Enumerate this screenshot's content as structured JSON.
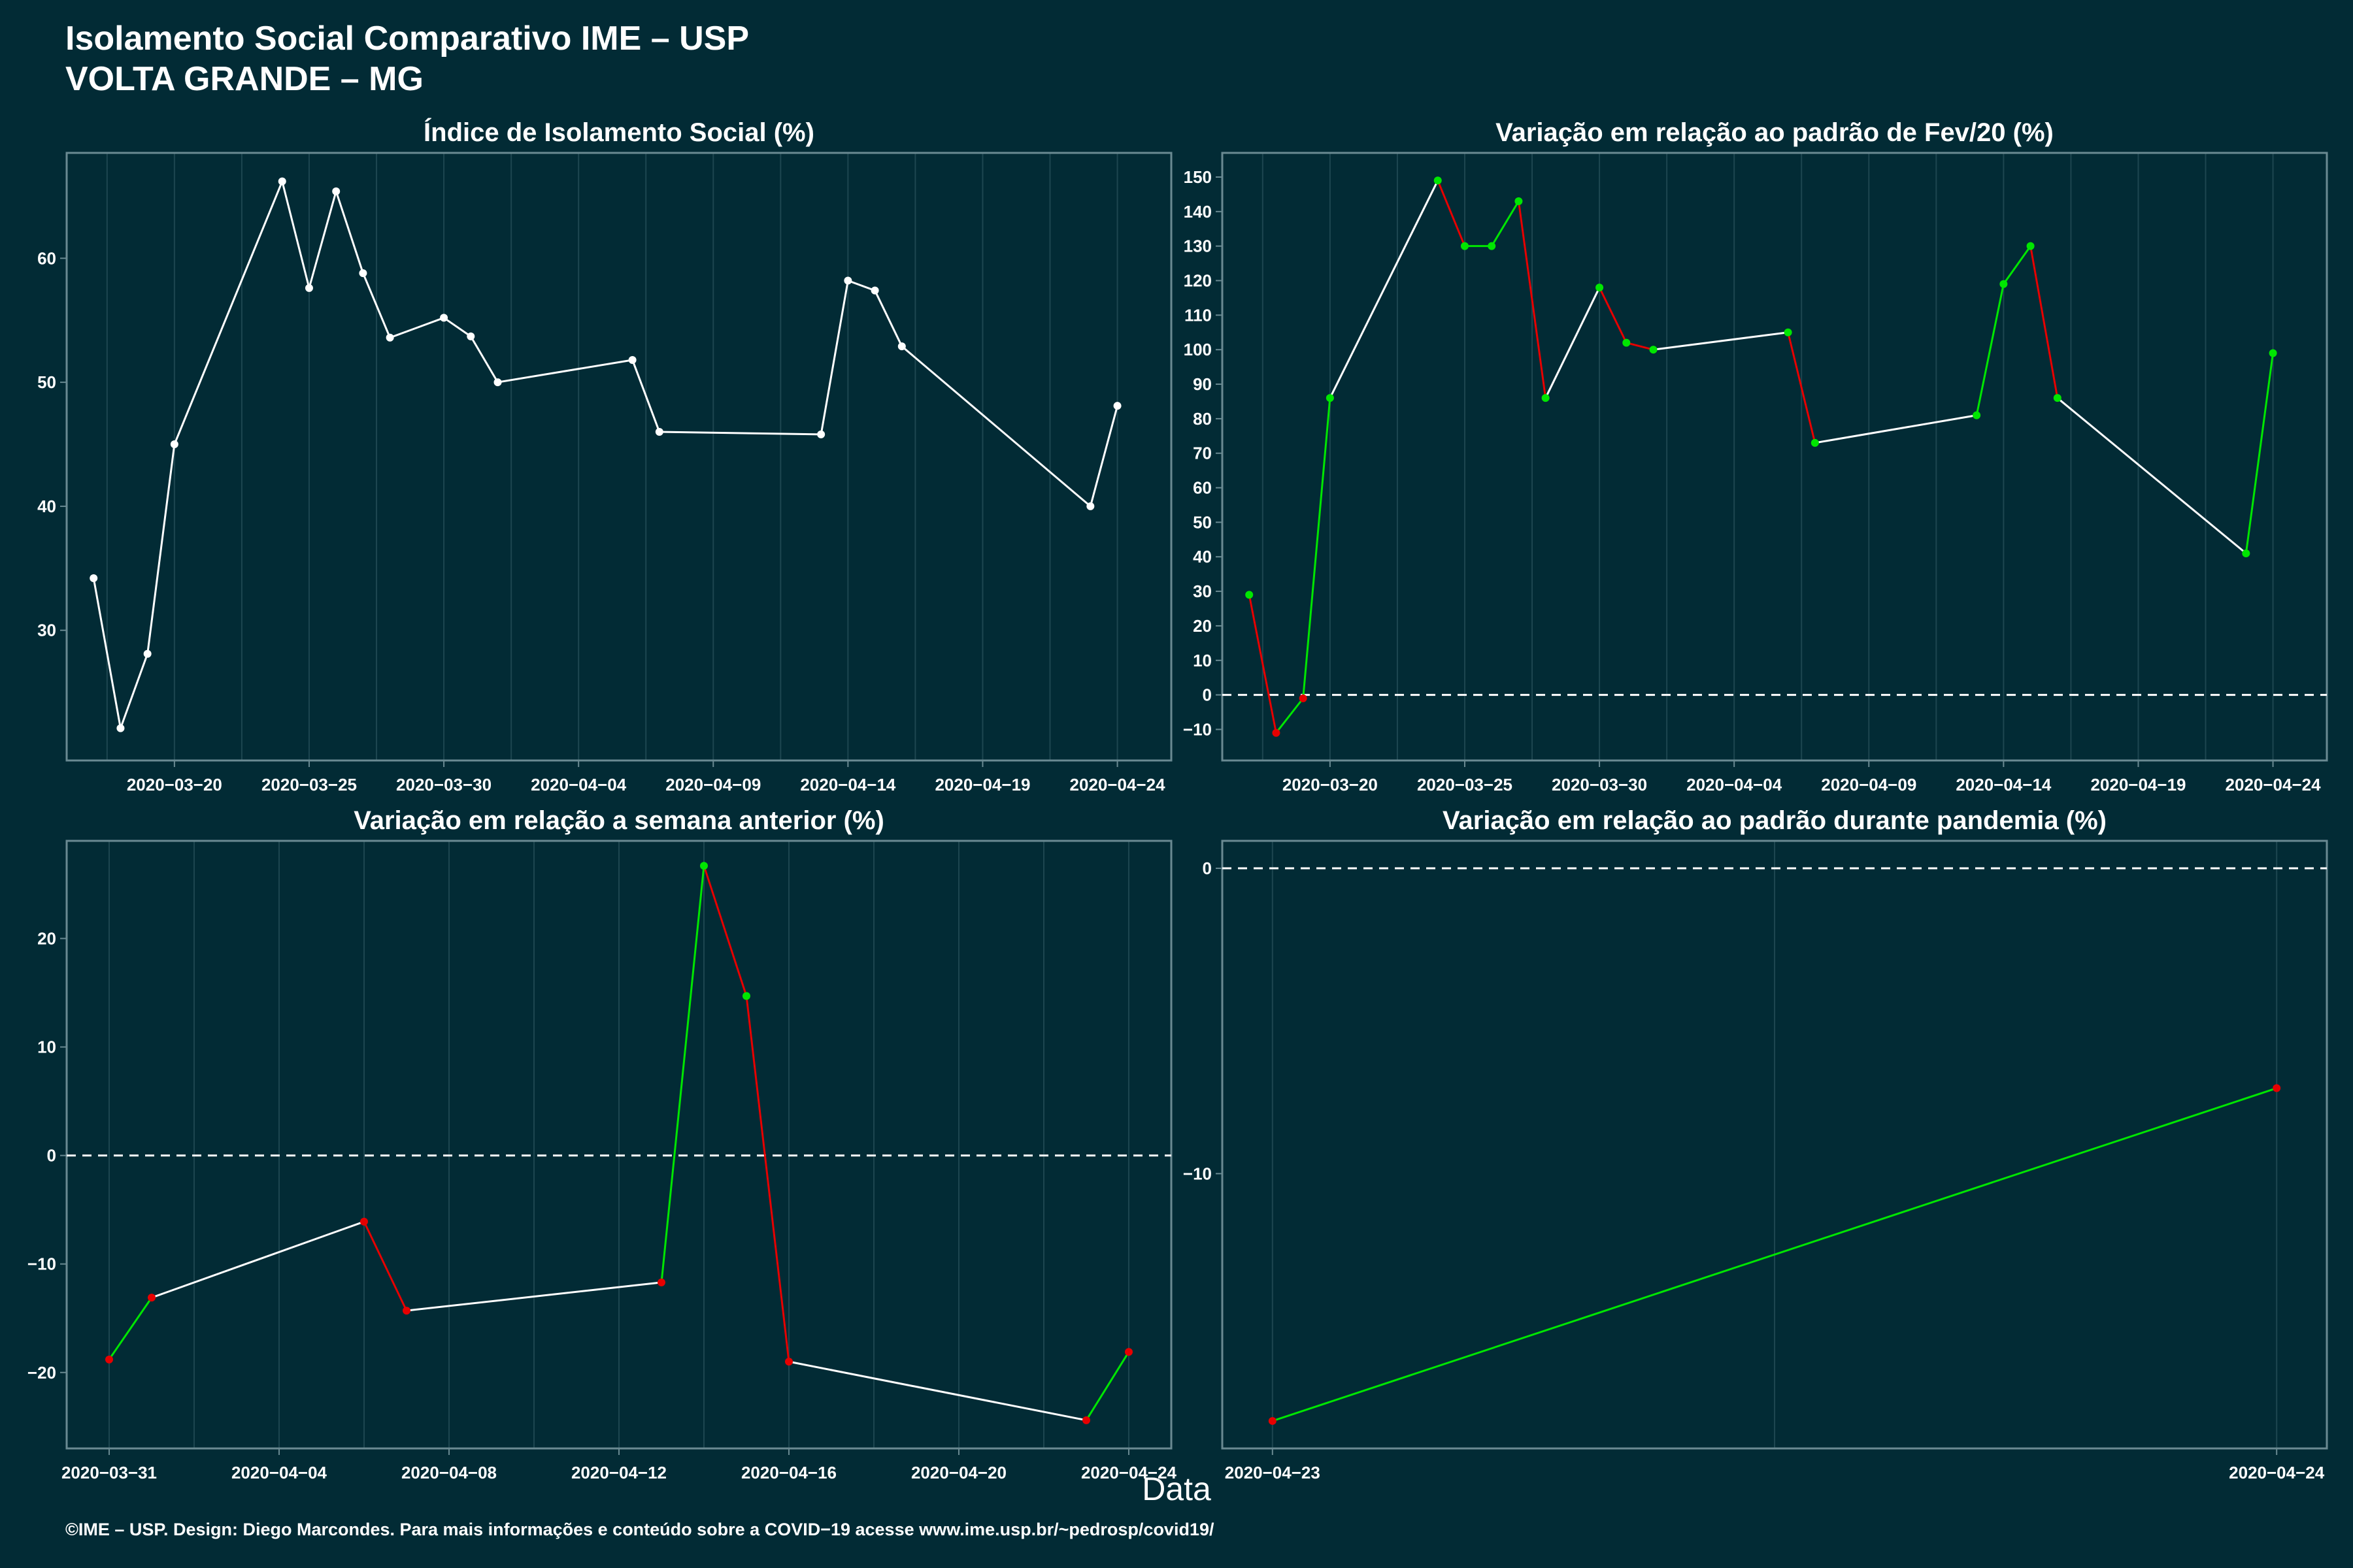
{
  "header": {
    "title_line1": "Isolamento Social Comparativo IME – USP",
    "title_line2": "VOLTA GRANDE – MG"
  },
  "xaxis_title": "Data",
  "footer": "©IME – USP. Design: Diego Marcondes. Para mais informações e conteúdo sobre a COVID−19 acesse www.ime.usp.br/~pedrosp/covid19/",
  "colors": {
    "background": "#022b35",
    "panel_border": "#6a8a92",
    "grid": "#1d4650",
    "line_neutral": "#ffffff",
    "increase": "#00e600",
    "decrease": "#e60000"
  },
  "chart_data": [
    {
      "type": "line",
      "title": "Índice de Isolamento Social (%)",
      "x_type": "date",
      "xlim": [
        "2020-03-16",
        "2020-04-26"
      ],
      "ylim": [
        19.5,
        68.5
      ],
      "x_ticks": [
        "2020-03-20",
        "2020-03-25",
        "2020-03-30",
        "2020-04-04",
        "2020-04-09",
        "2020-04-14",
        "2020-04-19",
        "2020-04-24"
      ],
      "y_ticks": [
        30,
        40,
        50,
        60
      ],
      "reference_zero": false,
      "color_by_sign": false,
      "points": [
        [
          "2020-03-17",
          34.2
        ],
        [
          "2020-03-18",
          22.1
        ],
        [
          "2020-03-19",
          28.1
        ],
        [
          "2020-03-20",
          45.0
        ],
        [
          "2020-03-24",
          66.2
        ],
        [
          "2020-03-25",
          57.6
        ],
        [
          "2020-03-26",
          65.4
        ],
        [
          "2020-03-27",
          58.8
        ],
        [
          "2020-03-28",
          53.6
        ],
        [
          "2020-03-30",
          55.2
        ],
        [
          "2020-03-31",
          53.7
        ],
        [
          "2020-04-01",
          50.0
        ],
        [
          "2020-04-06",
          51.8
        ],
        [
          "2020-04-07",
          46.0
        ],
        [
          "2020-04-13",
          45.8
        ],
        [
          "2020-04-14",
          58.2
        ],
        [
          "2020-04-15",
          57.4
        ],
        [
          "2020-04-16",
          52.9
        ],
        [
          "2020-04-23",
          40.0
        ],
        [
          "2020-04-24",
          48.1
        ]
      ]
    },
    {
      "type": "line",
      "title": "Variação em relação ao padrão de Fev/20 (%)",
      "x_type": "date",
      "xlim": [
        "2020-03-16",
        "2020-04-26"
      ],
      "ylim": [
        -19,
        157
      ],
      "x_ticks": [
        "2020-03-20",
        "2020-03-25",
        "2020-03-30",
        "2020-04-04",
        "2020-04-09",
        "2020-04-14",
        "2020-04-19",
        "2020-04-24"
      ],
      "y_ticks": [
        -10,
        0,
        10,
        20,
        30,
        40,
        50,
        60,
        70,
        80,
        90,
        100,
        110,
        120,
        130,
        140,
        150
      ],
      "reference_zero": true,
      "color_by_sign": true,
      "points": [
        [
          "2020-03-17",
          29
        ],
        [
          "2020-03-18",
          -11
        ],
        [
          "2020-03-19",
          -1
        ],
        [
          "2020-03-20",
          86
        ],
        [
          "2020-03-24",
          149
        ],
        [
          "2020-03-25",
          130
        ],
        [
          "2020-03-26",
          130
        ],
        [
          "2020-03-27",
          143
        ],
        [
          "2020-03-28",
          86
        ],
        [
          "2020-03-30",
          118
        ],
        [
          "2020-03-31",
          102
        ],
        [
          "2020-04-01",
          100
        ],
        [
          "2020-04-06",
          105
        ],
        [
          "2020-04-07",
          73
        ],
        [
          "2020-04-13",
          81
        ],
        [
          "2020-04-14",
          119
        ],
        [
          "2020-04-15",
          130
        ],
        [
          "2020-04-16",
          86
        ],
        [
          "2020-04-23",
          41
        ],
        [
          "2020-04-24",
          99
        ]
      ]
    },
    {
      "type": "line",
      "title": "Variação em relação a semana anterior (%)",
      "x_type": "date",
      "xlim": [
        "2020-03-30",
        "2020-04-25"
      ],
      "ylim": [
        -27,
        29
      ],
      "x_ticks": [
        "2020-03-31",
        "2020-04-04",
        "2020-04-08",
        "2020-04-12",
        "2020-04-16",
        "2020-04-20",
        "2020-04-24"
      ],
      "y_ticks": [
        -20,
        -10,
        0,
        10,
        20
      ],
      "reference_zero": true,
      "color_by_sign": true,
      "points": [
        [
          "2020-03-31",
          -18.8
        ],
        [
          "2020-04-01",
          -13.1
        ],
        [
          "2020-04-06",
          -6.1
        ],
        [
          "2020-04-07",
          -14.3
        ],
        [
          "2020-04-13",
          -11.7
        ],
        [
          "2020-04-14",
          26.7
        ],
        [
          "2020-04-15",
          14.7
        ],
        [
          "2020-04-16",
          -19.0
        ],
        [
          "2020-04-23",
          -24.4
        ],
        [
          "2020-04-24",
          -18.1
        ]
      ]
    },
    {
      "type": "line",
      "title": "Variação em relação ao padrão durante pandemia (%)",
      "x_type": "date",
      "xlim": [
        "2020-04-22.95",
        "2020-04-24.05"
      ],
      "ylim": [
        -19.0,
        0.9
      ],
      "x_ticks": [
        "2020-04-23",
        "2020-04-24"
      ],
      "y_ticks": [
        -10,
        0
      ],
      "reference_zero": true,
      "color_by_sign": true,
      "points": [
        [
          "2020-04-23",
          -18.1
        ],
        [
          "2020-04-24",
          -7.2
        ]
      ]
    }
  ]
}
